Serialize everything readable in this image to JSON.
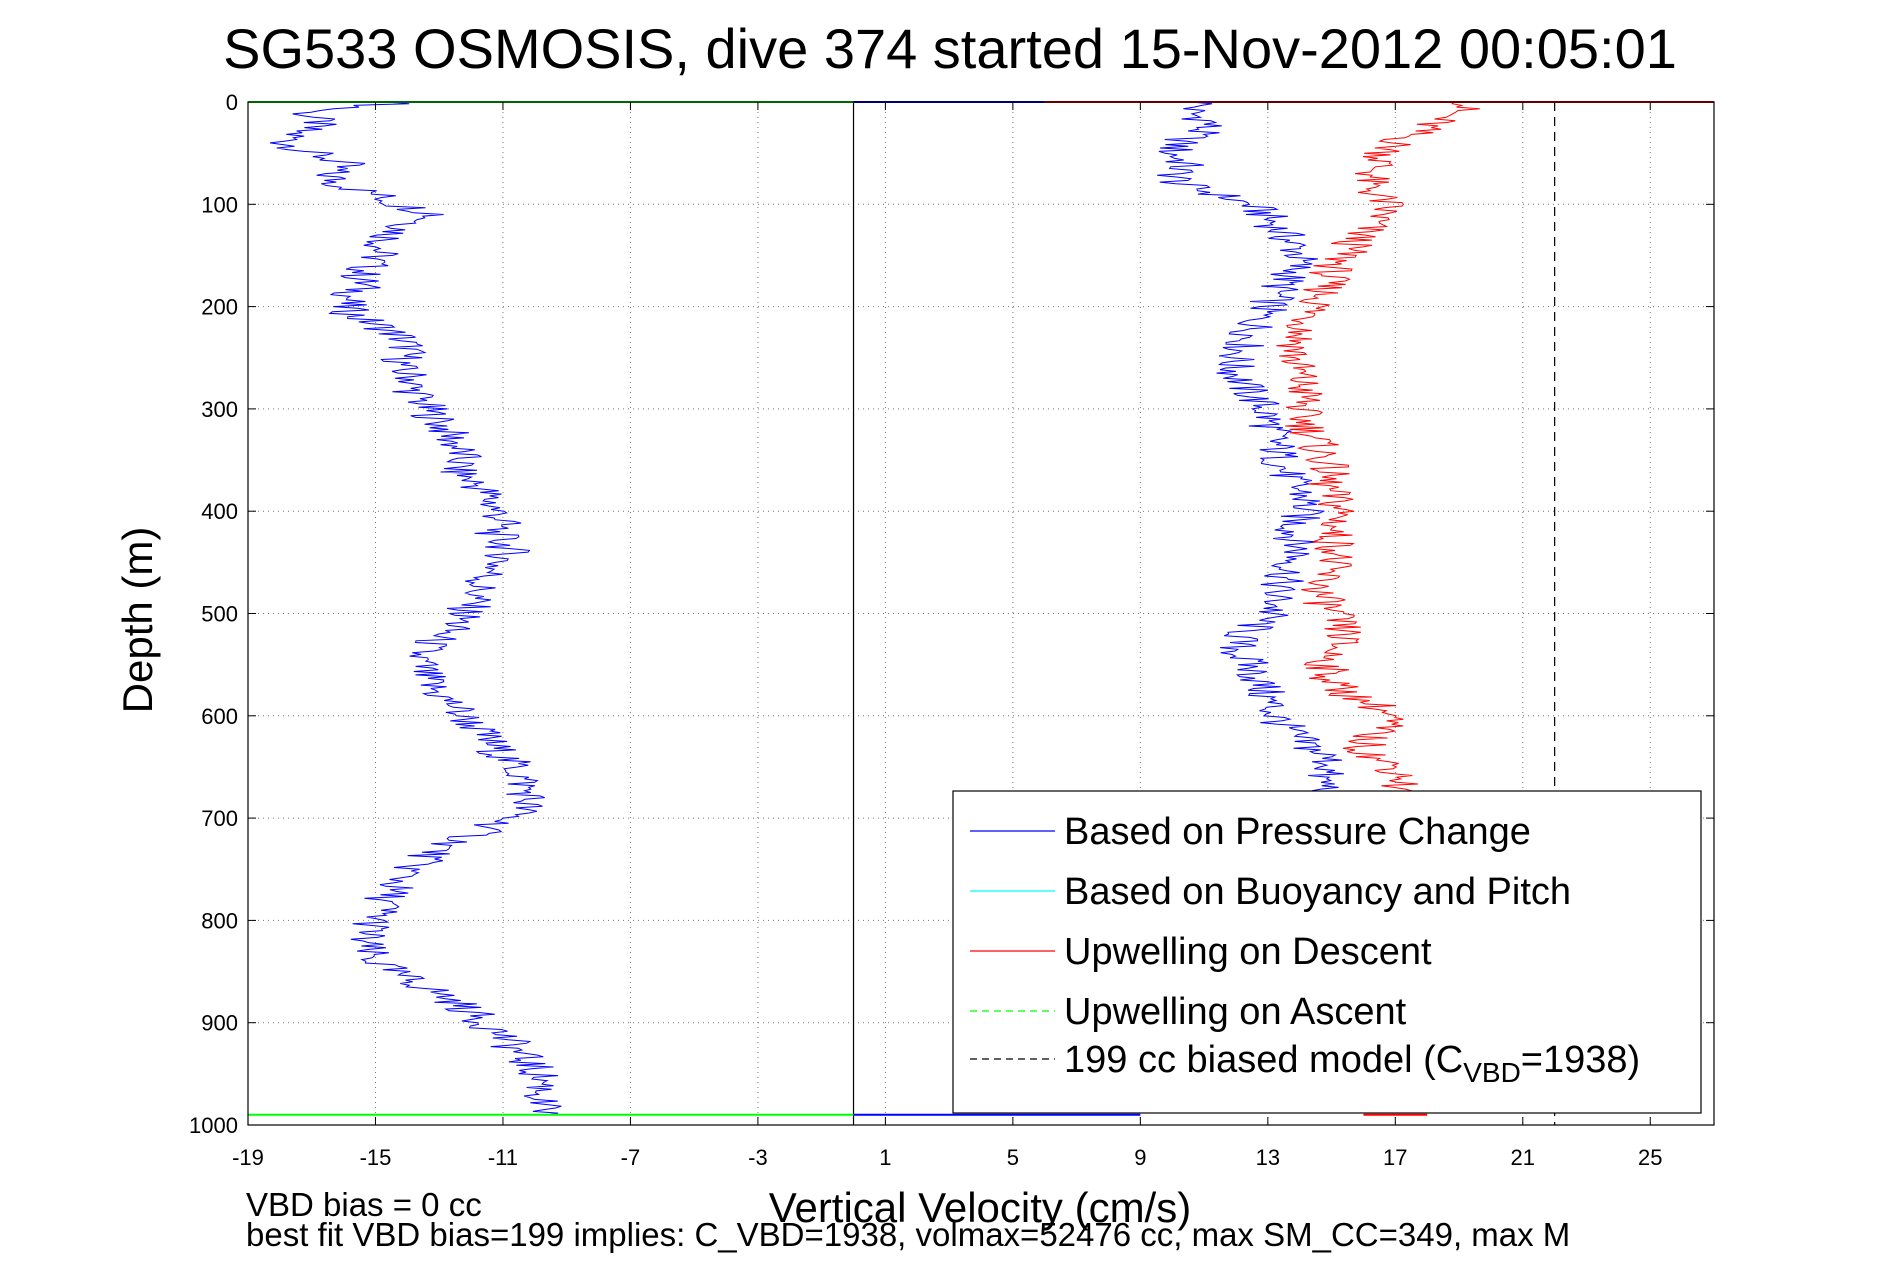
{
  "chart_data": {
    "type": "line",
    "title": "SG533 OSMOSIS, dive 374 started 15-Nov-2012 00:05:01",
    "xlabel": "Vertical Velocity (cm/s)",
    "ylabel": "Depth (m)",
    "xlim": [
      -19,
      27
    ],
    "ylim": [
      1000,
      0
    ],
    "y_reversed": true,
    "grid": true,
    "x_ticks": [
      -19,
      -15,
      -11,
      -7,
      -3,
      1,
      5,
      9,
      13,
      17,
      21,
      25
    ],
    "y_ticks": [
      0,
      100,
      200,
      300,
      400,
      500,
      600,
      700,
      800,
      900,
      1000
    ],
    "legend_position": "bottom-right",
    "legend": {
      "entries": [
        {
          "label": "Based on Pressure Change",
          "color": "#0000ff",
          "dash": "solid"
        },
        {
          "label": "Based on Buoyancy and Pitch",
          "color": "#00ffff",
          "dash": "solid"
        },
        {
          "label": "Upwelling on Descent",
          "color": "#ff0000",
          "dash": "solid"
        },
        {
          "label": "Upwelling on Ascent",
          "color": "#00ff00",
          "dash": "dashed"
        },
        {
          "label_prefix": "199 cc biased model (C",
          "label_sub": "VBD",
          "label_suffix": "=1938)",
          "color": "#000000",
          "dash": "dashed"
        }
      ]
    },
    "reference_lines": [
      {
        "x": 0,
        "color": "#000000",
        "dash": "solid"
      },
      {
        "x": 22,
        "color": "#000000",
        "dash": "dashed"
      }
    ],
    "series": [
      {
        "color": "#0000ff",
        "depth": [
          0,
          10,
          20,
          30,
          40,
          50,
          60,
          70,
          80,
          90,
          100,
          110,
          120,
          130,
          140,
          150,
          160,
          170,
          180,
          190,
          200,
          210,
          220,
          230,
          240,
          250,
          260,
          270,
          280,
          290,
          300,
          310,
          320,
          330,
          340,
          350,
          360,
          370,
          380,
          390,
          400,
          410,
          420,
          430,
          440,
          450,
          460,
          470,
          480,
          490,
          500,
          510,
          520,
          530,
          540,
          550,
          560,
          570,
          580,
          590,
          600,
          610,
          620,
          630,
          640,
          650,
          660,
          670,
          680,
          690,
          700,
          710,
          720,
          730,
          740,
          750,
          760,
          770,
          780,
          790,
          800,
          810,
          820,
          830,
          840,
          850,
          860,
          870,
          880,
          890,
          900,
          910,
          920,
          930,
          940,
          950,
          960,
          970,
          980,
          990
        ],
        "velocity": [
          -14.0,
          -17.2,
          -16.8,
          -17.5,
          -17.8,
          -17.0,
          -16.0,
          -16.5,
          -16.2,
          -15.0,
          -14.3,
          -13.0,
          -13.9,
          -14.5,
          -14.8,
          -14.9,
          -15.2,
          -15.5,
          -15.4,
          -15.8,
          -16.0,
          -15.6,
          -14.8,
          -14.2,
          -14.0,
          -14.1,
          -14.3,
          -13.8,
          -13.9,
          -13.6,
          -13.4,
          -13.1,
          -12.8,
          -12.6,
          -12.4,
          -12.3,
          -12.5,
          -12.0,
          -11.6,
          -11.4,
          -11.2,
          -11.0,
          -11.3,
          -11.0,
          -10.8,
          -11.1,
          -11.4,
          -11.7,
          -11.8,
          -12.0,
          -12.2,
          -12.4,
          -12.9,
          -13.3,
          -13.7,
          -13.6,
          -13.5,
          -13.3,
          -13.0,
          -12.5,
          -12.3,
          -11.9,
          -11.6,
          -11.3,
          -11.0,
          -10.6,
          -10.4,
          -10.3,
          -10.2,
          -10.3,
          -10.8,
          -11.5,
          -12.2,
          -13.0,
          -13.5,
          -13.9,
          -14.2,
          -14.5,
          -14.7,
          -14.8,
          -15.0,
          -15.2,
          -15.4,
          -15.3,
          -15.0,
          -14.5,
          -13.8,
          -13.1,
          -12.5,
          -12.0,
          -11.6,
          -11.1,
          -10.8,
          -10.5,
          -10.2,
          -9.9,
          -9.7,
          -9.8,
          -9.9,
          -9.6
        ]
      },
      {
        "color": "#0000ff",
        "depth": [
          0,
          10,
          20,
          30,
          40,
          50,
          60,
          70,
          80,
          90,
          100,
          110,
          120,
          130,
          140,
          150,
          160,
          170,
          180,
          190,
          200,
          210,
          220,
          230,
          240,
          250,
          260,
          270,
          280,
          290,
          300,
          310,
          320,
          330,
          340,
          350,
          360,
          370,
          380,
          390,
          400,
          410,
          420,
          430,
          440,
          450,
          460,
          470,
          480,
          490,
          500,
          510,
          520,
          530,
          540,
          550,
          560,
          570,
          580,
          590,
          600,
          610,
          620,
          630,
          640,
          650,
          660,
          670,
          680,
          690
        ],
        "velocity": [
          11.0,
          10.5,
          11.2,
          10.8,
          10.2,
          10.0,
          10.4,
          10.1,
          10.2,
          11.4,
          12.4,
          12.9,
          13.2,
          13.5,
          13.8,
          14.0,
          13.9,
          13.7,
          13.4,
          13.2,
          13.0,
          12.7,
          12.6,
          12.4,
          12.2,
          12.0,
          11.9,
          12.1,
          12.3,
          12.6,
          12.9,
          13.0,
          13.1,
          13.2,
          13.3,
          13.4,
          13.5,
          13.7,
          14.0,
          14.2,
          14.1,
          13.9,
          13.8,
          13.9,
          14.0,
          13.8,
          13.6,
          13.4,
          13.2,
          13.3,
          13.1,
          12.7,
          12.2,
          12.0,
          12.1,
          12.4,
          12.6,
          12.8,
          12.9,
          13.1,
          13.2,
          13.5,
          13.8,
          14.3,
          14.8,
          15.0,
          14.6,
          14.9,
          15.2,
          15.1
        ]
      },
      {
        "color": "#ff0000",
        "depth": [
          0,
          10,
          20,
          30,
          40,
          50,
          60,
          70,
          80,
          90,
          100,
          110,
          120,
          130,
          140,
          150,
          160,
          170,
          180,
          190,
          200,
          210,
          220,
          230,
          240,
          250,
          260,
          270,
          280,
          290,
          300,
          310,
          320,
          330,
          340,
          350,
          360,
          370,
          380,
          390,
          400,
          410,
          420,
          430,
          440,
          450,
          460,
          470,
          480,
          490,
          500,
          510,
          520,
          530,
          540,
          550,
          560,
          570,
          580,
          590,
          600,
          610,
          620,
          630,
          640,
          650,
          660,
          670,
          680,
          690
        ],
        "velocity": [
          19.5,
          18.8,
          18.2,
          17.6,
          17.0,
          16.7,
          16.5,
          16.3,
          16.1,
          16.4,
          16.7,
          16.6,
          16.2,
          15.9,
          15.6,
          15.4,
          15.1,
          14.9,
          14.8,
          14.7,
          14.5,
          14.3,
          14.2,
          14.0,
          13.9,
          13.8,
          13.9,
          14.0,
          14.1,
          14.2,
          14.0,
          14.1,
          14.3,
          14.5,
          14.6,
          14.8,
          14.9,
          14.8,
          14.9,
          15.1,
          15.3,
          15.2,
          15.0,
          15.1,
          15.2,
          15.0,
          14.8,
          14.7,
          14.6,
          14.8,
          15.0,
          15.2,
          15.4,
          15.2,
          15.0,
          14.8,
          14.9,
          15.1,
          15.6,
          16.4,
          16.8,
          16.6,
          16.2,
          16.0,
          16.3,
          16.9,
          17.3,
          17.1,
          16.9,
          16.6
        ]
      }
    ],
    "surface_lines": [
      {
        "depth": 0,
        "x0": -19,
        "x1": 0,
        "color": "#00ff00"
      },
      {
        "depth": 0,
        "x0": 0,
        "x1": 6,
        "color": "#0000ff"
      },
      {
        "depth": 0,
        "x0": 6,
        "x1": 27,
        "color": "#ff0000"
      },
      {
        "depth": 990,
        "x0": -19,
        "x1": 0,
        "color": "#00ff00"
      },
      {
        "depth": 990,
        "x0": 0,
        "x1": 9,
        "color": "#0000ff"
      },
      {
        "depth": 990,
        "x0": 16,
        "x1": 18,
        "color": "#ff0000"
      }
    ]
  },
  "footer": {
    "line1": "VBD bias = 0 cc",
    "line2": "best fit VBD bias=199 implies: C_VBD=1938, volmax=52476 cc, max SM_CC=349, max M"
  }
}
